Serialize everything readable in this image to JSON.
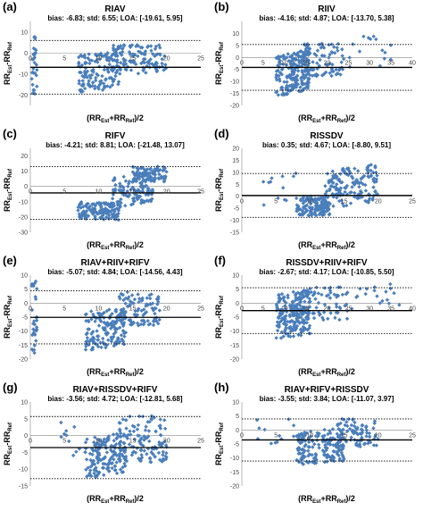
{
  "figure": {
    "background": "#ffffff",
    "marker_color": "#4a7ebb"
  },
  "chart_data": [
    {
      "label": "(a)",
      "type": "scatter",
      "title": "RIAV",
      "stats": "bias: -6.83; std: 6.55; LOA: [-19.61, 5.95]",
      "xlabel_main": "(RR",
      "xlabel_sub1": "Est",
      "xlabel_mid": "+RR",
      "xlabel_sub2": "Ref",
      "xlabel_end": ")/2",
      "ylabel_main": "RR",
      "ylabel_sub1": "Est",
      "ylabel_mid": "-RR",
      "ylabel_sub2": "Ref",
      "xlim": [
        0,
        25
      ],
      "xticks": [
        "0",
        "5",
        "10",
        "15",
        "20",
        "25"
      ],
      "ylim": [
        -25,
        15
      ],
      "yticks": [
        "10",
        "0",
        "-10",
        "-20"
      ],
      "ytick_values": [
        10,
        0,
        -10,
        -20
      ],
      "bias": -6.83,
      "loa": [
        -19.61,
        5.95
      ],
      "point_groups": [
        {
          "n": 30,
          "x": [
            0.2,
            1.0
          ],
          "y": [
            -20,
            8
          ]
        },
        {
          "n": 140,
          "x": [
            7,
            13
          ],
          "y": [
            -18,
            0
          ],
          "trend": 0.6
        },
        {
          "n": 120,
          "x": [
            12,
            20
          ],
          "y": [
            -10,
            4
          ]
        }
      ]
    },
    {
      "label": "(b)",
      "type": "scatter",
      "title": "RIIV",
      "stats": "bias: -4.16; std: 4.87; LOA: [-13.70, 5.38]",
      "xlabel_main": "(RR",
      "xlabel_sub1": "Est",
      "xlabel_mid": "+RR",
      "xlabel_sub2": "Ref",
      "xlabel_end": ")/2",
      "ylabel_main": "RR",
      "ylabel_sub1": "Est",
      "ylabel_mid": "-RR",
      "ylabel_sub2": "Ref",
      "xlim": [
        0,
        40
      ],
      "xticks": [
        "0",
        "5",
        "10",
        "15",
        "20",
        "25",
        "30",
        "35",
        "40"
      ],
      "ylim": [
        -20,
        15
      ],
      "yticks": [
        "10",
        "5",
        "0",
        "-5",
        "-10",
        "-15",
        "-20"
      ],
      "ytick_values": [
        10,
        5,
        0,
        -5,
        -10,
        -15,
        -20
      ],
      "bias": -4.16,
      "loa": [
        -13.7,
        5.38
      ],
      "point_groups": [
        {
          "n": 200,
          "x": [
            8,
            16
          ],
          "y": [
            -15,
            2
          ],
          "trend": 0.9
        },
        {
          "n": 90,
          "x": [
            14,
            24
          ],
          "y": [
            -8,
            6
          ]
        },
        {
          "n": 15,
          "x": [
            25,
            35
          ],
          "y": [
            -4,
            10
          ]
        }
      ]
    },
    {
      "label": "(c)",
      "type": "scatter",
      "title": "RIFV",
      "stats": "bias: -4.21; std: 8.81; LOA: [-21.48, 13.07]",
      "xlabel_main": "(RR",
      "xlabel_sub1": "Est",
      "xlabel_mid": "+RR",
      "xlabel_sub2": "Ref",
      "xlabel_end": ")/2",
      "ylabel_main": "RR",
      "ylabel_sub1": "Est",
      "ylabel_mid": "-RR",
      "ylabel_sub2": "Ref",
      "xlim": [
        0,
        25
      ],
      "xticks": [
        "0",
        "5",
        "10",
        "15",
        "20",
        "25"
      ],
      "ylim": [
        -30,
        25
      ],
      "yticks": [
        "20",
        "10",
        "0",
        "-10",
        "-20",
        "-30"
      ],
      "ytick_values": [
        20,
        10,
        0,
        -10,
        -20,
        -30
      ],
      "bias": -4.21,
      "loa": [
        -21.48,
        13.07
      ],
      "point_groups": [
        {
          "n": 140,
          "x": [
            7,
            13
          ],
          "y": [
            -22,
            -10
          ]
        },
        {
          "n": 130,
          "x": [
            12,
            18
          ],
          "y": [
            -12,
            8
          ],
          "trend": 1.6
        },
        {
          "n": 90,
          "x": [
            15,
            20
          ],
          "y": [
            3,
            13
          ]
        }
      ]
    },
    {
      "label": "(d)",
      "type": "scatter",
      "title": "RISSDV",
      "stats": "bias: 0.35; std: 4.67; LOA: [-8.80, 9.51]",
      "xlabel_main": "(RR",
      "xlabel_sub1": "Est",
      "xlabel_mid": "+RR",
      "xlabel_sub2": "Ref",
      "xlabel_end": ")/2",
      "ylabel_main": "RR",
      "ylabel_sub1": "Est",
      "ylabel_mid": "-RR",
      "ylabel_sub2": "Ref",
      "xlim": [
        0,
        25
      ],
      "xticks": [
        "0",
        "5",
        "10",
        "15",
        "20",
        "25"
      ],
      "ylim": [
        -15,
        20
      ],
      "yticks": [
        "20",
        "15",
        "10",
        "5",
        "0",
        "-5",
        "-10",
        "-15"
      ],
      "ytick_values": [
        20,
        15,
        10,
        5,
        0,
        -5,
        -10,
        -15
      ],
      "bias": 0.35,
      "loa": [
        -8.8,
        9.51
      ],
      "point_groups": [
        {
          "n": 130,
          "x": [
            8,
            13
          ],
          "y": [
            -8,
            0
          ]
        },
        {
          "n": 160,
          "x": [
            12,
            20
          ],
          "y": [
            -4,
            12
          ],
          "trend": 0.8
        },
        {
          "n": 12,
          "x": [
            3,
            8
          ],
          "y": [
            -5,
            10
          ]
        }
      ]
    },
    {
      "label": "(e)",
      "type": "scatter",
      "title": "RIAV+RIIV+RIFV",
      "stats": "bias: -5.07; std: 4.84; LOA: [-14.56, 4.43]",
      "xlabel_main": "(RR",
      "xlabel_sub1": "Est",
      "xlabel_mid": "+RR",
      "xlabel_sub2": "Ref",
      "xlabel_end": ")/2",
      "ylabel_main": "RR",
      "ylabel_sub1": "Est",
      "ylabel_mid": "-RR",
      "ylabel_sub2": "Ref",
      "xlim": [
        0,
        25
      ],
      "xticks": [
        "0",
        "5",
        "10",
        "15",
        "20",
        "25"
      ],
      "ylim": [
        -20,
        10
      ],
      "yticks": [
        "10",
        "5",
        "0",
        "-5",
        "-10",
        "-15",
        "-20"
      ],
      "ytick_values": [
        10,
        5,
        0,
        -5,
        -10,
        -15,
        -20
      ],
      "bias": -5.07,
      "loa": [
        -14.56,
        4.43
      ],
      "point_groups": [
        {
          "n": 30,
          "x": [
            0.2,
            1.0
          ],
          "y": [
            -18,
            8
          ]
        },
        {
          "n": 150,
          "x": [
            8,
            14
          ],
          "y": [
            -16,
            -2
          ],
          "trend": 0.7
        },
        {
          "n": 100,
          "x": [
            13,
            19
          ],
          "y": [
            -8,
            4
          ]
        }
      ]
    },
    {
      "label": "(f)",
      "type": "scatter",
      "title": "RISSDV+RIIV+RIFV",
      "stats": "bias: -2.67; std: 4.17; LOA: [-10.85, 5.50]",
      "xlabel_main": "(RR",
      "xlabel_sub1": "Est",
      "xlabel_mid": "+RR",
      "xlabel_sub2": "Ref",
      "xlabel_end": ")/2",
      "ylabel_main": "RR",
      "ylabel_sub1": "Est",
      "ylabel_mid": "-RR",
      "ylabel_sub2": "Ref",
      "xlim": [
        0,
        40
      ],
      "xticks": [
        "0",
        "5",
        "10",
        "15",
        "20",
        "25",
        "30",
        "35",
        "40"
      ],
      "ylim": [
        -20,
        10
      ],
      "yticks": [
        "10",
        "5",
        "0",
        "-5",
        "-10",
        "-15",
        "-20"
      ],
      "ytick_values": [
        10,
        5,
        0,
        -5,
        -10,
        -15,
        -20
      ],
      "bias": -2.67,
      "loa": [
        -10.85,
        5.5
      ],
      "point_groups": [
        {
          "n": 220,
          "x": [
            8,
            16
          ],
          "y": [
            -12,
            4
          ],
          "trend": 0.5
        },
        {
          "n": 60,
          "x": [
            15,
            25
          ],
          "y": [
            -6,
            6
          ]
        },
        {
          "n": 18,
          "x": [
            25,
            37
          ],
          "y": [
            -2,
            8
          ]
        }
      ]
    },
    {
      "label": "(g)",
      "type": "scatter",
      "title": "RIAV+RISSDV+RIFV",
      "stats": "bias: -3.56; std: 4.72; LOA: [-12.81, 5.68]",
      "xlabel_main": "(RR",
      "xlabel_sub1": "Est",
      "xlabel_mid": "+RR",
      "xlabel_sub2": "Ref",
      "xlabel_end": ")/2",
      "ylabel_main": "RR",
      "ylabel_sub1": "Est",
      "ylabel_mid": "-RR",
      "ylabel_sub2": "Ref",
      "xlim": [
        0,
        25
      ],
      "xticks": [
        "0",
        "5",
        "10",
        "15",
        "20",
        "25"
      ],
      "ylim": [
        -15,
        10
      ],
      "yticks": [
        "10",
        "5",
        "0",
        "-5",
        "-10",
        "-15"
      ],
      "ytick_values": [
        10,
        5,
        0,
        -5,
        -10,
        -15
      ],
      "bias": -3.56,
      "loa": [
        -12.81,
        5.68
      ],
      "point_groups": [
        {
          "n": 150,
          "x": [
            8,
            14
          ],
          "y": [
            -12,
            0
          ],
          "trend": 0.6
        },
        {
          "n": 130,
          "x": [
            13,
            20
          ],
          "y": [
            -8,
            6
          ]
        },
        {
          "n": 10,
          "x": [
            4,
            8
          ],
          "y": [
            -6,
            4
          ]
        }
      ]
    },
    {
      "label": "(h)",
      "type": "scatter",
      "title": "RIAV+RIFV+RISSDV",
      "stats": "bias: -3.55; std: 3.84; LOA: [-11.07, 3.97]",
      "xlabel_main": "(RR",
      "xlabel_sub1": "Est",
      "xlabel_mid": "+RR",
      "xlabel_sub2": "Ref",
      "xlabel_end": ")/2",
      "ylabel_main": "RR",
      "ylabel_sub1": "Est",
      "ylabel_mid": "-RR",
      "ylabel_sub2": "Ref",
      "xlim": [
        0,
        25
      ],
      "xticks": [
        "0",
        "5",
        "10",
        "15",
        "20",
        "25"
      ],
      "ylim": [
        -20,
        10
      ],
      "yticks": [
        "10",
        "5",
        "0",
        "-5",
        "-10",
        "-15",
        "-20"
      ],
      "ytick_values": [
        10,
        5,
        0,
        -5,
        -10,
        -15,
        -20
      ],
      "bias": -3.55,
      "loa": [
        -11.07,
        3.97
      ],
      "point_groups": [
        {
          "n": 170,
          "x": [
            8,
            15
          ],
          "y": [
            -12,
            0
          ],
          "trend": 0.5
        },
        {
          "n": 80,
          "x": [
            14,
            20
          ],
          "y": [
            -6,
            4
          ]
        },
        {
          "n": 12,
          "x": [
            2,
            8
          ],
          "y": [
            -6,
            4
          ]
        }
      ]
    }
  ]
}
